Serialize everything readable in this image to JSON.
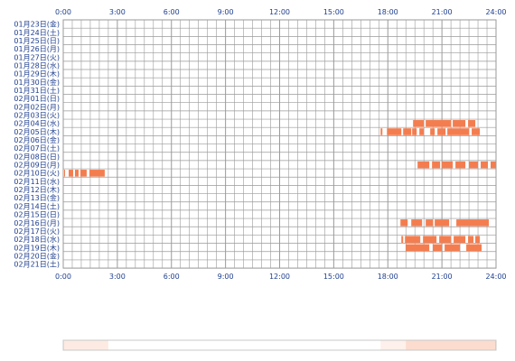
{
  "chart_data": {
    "type": "heatmap",
    "title": "",
    "xlabel": "",
    "ylabel": "",
    "xlim": [
      0,
      24
    ],
    "grid": true,
    "x_ticks": [
      "0:00",
      "3:00",
      "6:00",
      "9:00",
      "12:00",
      "15:00",
      "18:00",
      "21:00",
      "24:00"
    ],
    "colors": {
      "activity": "#f47d4f",
      "grid": "#9a9a9a",
      "label": "#1f3f8f"
    },
    "rows": [
      {
        "label": "01月23日(金)",
        "segments": []
      },
      {
        "label": "01月24日(土)",
        "segments": []
      },
      {
        "label": "01月25日(日)",
        "segments": []
      },
      {
        "label": "01月26日(月)",
        "segments": []
      },
      {
        "label": "01月27日(火)",
        "segments": []
      },
      {
        "label": "01月28日(水)",
        "segments": []
      },
      {
        "label": "01月29日(木)",
        "segments": []
      },
      {
        "label": "01月30日(金)",
        "segments": []
      },
      {
        "label": "01月31日(土)",
        "segments": []
      },
      {
        "label": "02月01日(日)",
        "segments": []
      },
      {
        "label": "02月02日(月)",
        "segments": []
      },
      {
        "label": "02月03日(火)",
        "segments": []
      },
      {
        "label": "02月04日(水)",
        "segments": [
          [
            19.4,
            20.0
          ],
          [
            20.1,
            21.5
          ],
          [
            21.6,
            22.3
          ],
          [
            22.45,
            22.85
          ]
        ]
      },
      {
        "label": "02月05日(木)",
        "segments": [
          [
            17.6,
            17.7
          ],
          [
            17.95,
            18.75
          ],
          [
            18.85,
            19.3
          ],
          [
            19.35,
            19.6
          ],
          [
            19.75,
            20.0
          ],
          [
            20.35,
            20.6
          ],
          [
            20.75,
            21.2
          ],
          [
            21.3,
            22.5
          ],
          [
            22.65,
            23.1
          ]
        ]
      },
      {
        "label": "02月06日(金)",
        "segments": []
      },
      {
        "label": "02月07日(土)",
        "segments": []
      },
      {
        "label": "02月08日(日)",
        "segments": []
      },
      {
        "label": "02月09日(月)",
        "segments": [
          [
            19.65,
            20.3
          ],
          [
            20.45,
            20.9
          ],
          [
            21.0,
            21.6
          ],
          [
            21.75,
            22.3
          ],
          [
            22.5,
            23.0
          ],
          [
            23.15,
            23.55
          ],
          [
            23.7,
            24.0
          ]
        ]
      },
      {
        "label": "02月10日(火)",
        "segments": [
          [
            0.05,
            0.1
          ],
          [
            0.3,
            0.55
          ],
          [
            0.65,
            0.85
          ],
          [
            0.95,
            1.3
          ],
          [
            1.45,
            2.3
          ]
        ]
      },
      {
        "label": "02月11日(水)",
        "segments": []
      },
      {
        "label": "02月12日(木)",
        "segments": []
      },
      {
        "label": "02月13日(金)",
        "segments": []
      },
      {
        "label": "02月14日(土)",
        "segments": []
      },
      {
        "label": "02月15日(日)",
        "segments": []
      },
      {
        "label": "02月16日(月)",
        "segments": [
          [
            18.7,
            19.1
          ],
          [
            19.3,
            19.9
          ],
          [
            20.1,
            20.5
          ],
          [
            20.6,
            21.4
          ],
          [
            21.8,
            23.6
          ]
        ]
      },
      {
        "label": "02月17日(火)",
        "segments": []
      },
      {
        "label": "02月18日(水)",
        "segments": [
          [
            18.75,
            18.85
          ],
          [
            18.95,
            19.8
          ],
          [
            19.95,
            20.7
          ],
          [
            20.85,
            21.5
          ],
          [
            21.65,
            22.3
          ],
          [
            22.45,
            22.75
          ],
          [
            22.85,
            23.1
          ]
        ]
      },
      {
        "label": "02月19日(木)",
        "segments": [
          [
            19.0,
            20.3
          ],
          [
            20.5,
            21.0
          ],
          [
            21.15,
            22.0
          ],
          [
            22.35,
            23.2
          ]
        ]
      },
      {
        "label": "02月20日(金)",
        "segments": []
      },
      {
        "label": "02月21日(土)",
        "segments": []
      }
    ],
    "density_strip": [
      {
        "x": [
          0,
          2.5
        ],
        "level": 0.35
      },
      {
        "x": [
          17.6,
          19.0
        ],
        "level": 0.25
      },
      {
        "x": [
          19.0,
          24.0
        ],
        "level": 0.6
      }
    ]
  }
}
